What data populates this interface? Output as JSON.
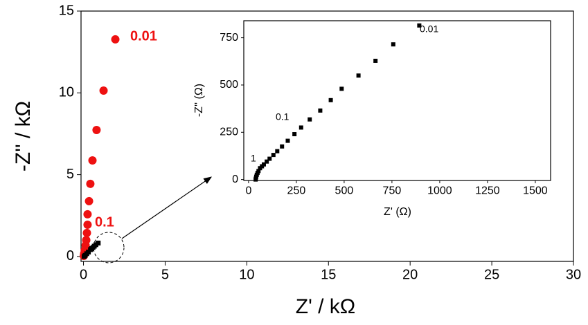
{
  "chart_data": [
    {
      "type": "scatter",
      "x_label": "Z' / kΩ",
      "y_label": "-Z'' / kΩ",
      "xlim": [
        -0.15,
        30
      ],
      "ylim": [
        -0.3,
        15
      ],
      "xticks": [
        0,
        5,
        10,
        15,
        20,
        25,
        30
      ],
      "yticks": [
        0,
        5,
        10,
        15
      ],
      "series": [
        {
          "color": "#ee1111",
          "marker": "circle",
          "x": [
            1.95,
            1.23,
            0.8,
            0.55,
            0.42,
            0.34,
            0.25,
            0.25,
            0.21,
            0.17,
            0.13,
            0.08,
            0.04,
            0.02
          ],
          "values": [
            13.27,
            10.14,
            7.73,
            5.87,
            4.44,
            3.38,
            2.58,
            1.94,
            1.44,
            1.0,
            0.68,
            0.38,
            0.17,
            0.04
          ]
        },
        {
          "color": "#000000",
          "marker": "square",
          "x": [
            0.04,
            0.1,
            0.2,
            0.3,
            0.43,
            0.5,
            0.58,
            0.66,
            0.76,
            0.9
          ],
          "values": [
            0.0,
            0.07,
            0.17,
            0.27,
            0.42,
            0.48,
            0.55,
            0.63,
            0.72,
            0.82
          ]
        }
      ],
      "annotations": [
        "0.01",
        "0.1"
      ],
      "annotation_color": "#ee1111"
    },
    {
      "type": "scatter",
      "x_label": "Z' (Ω)",
      "y_label": "-Z'' (Ω)",
      "xlim": [
        -25,
        1580
      ],
      "ylim": [
        -5,
        840
      ],
      "xticks": [
        0,
        250,
        500,
        750,
        1000,
        1250,
        1500
      ],
      "yticks": [
        0,
        250,
        500,
        750
      ],
      "series": [
        {
          "color": "#000000",
          "marker": "square",
          "x": [
            893,
            757,
            664,
            575,
            487,
            430,
            375,
            320,
            275,
            240,
            205,
            175,
            150,
            130,
            110,
            95,
            80,
            70,
            60,
            52,
            47,
            43,
            40,
            38,
            37
          ],
          "values": [
            815,
            715,
            628,
            550,
            480,
            420,
            365,
            318,
            275,
            240,
            205,
            175,
            150,
            130,
            110,
            95,
            80,
            70,
            60,
            45,
            35,
            25,
            15,
            5,
            0
          ]
        }
      ],
      "annotations": [
        "0.01",
        "0.1",
        "1"
      ],
      "annotation_color": "#000000"
    }
  ]
}
